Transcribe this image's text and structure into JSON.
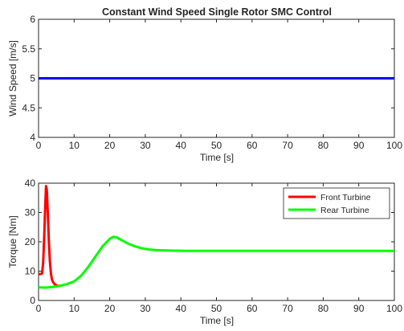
{
  "chart_data": [
    {
      "type": "line",
      "title": "Constant Wind Speed Single Rotor SMC Control",
      "xlabel": "Time [s]",
      "ylabel": "Wind Speed [m/s]",
      "xlim": [
        0,
        100
      ],
      "ylim": [
        4,
        6
      ],
      "xticks": [
        0,
        10,
        20,
        30,
        40,
        50,
        60,
        70,
        80,
        90,
        100
      ],
      "yticks": [
        4,
        4.5,
        5,
        5.5,
        6
      ],
      "ytick_labels": [
        "4",
        "4.5",
        "5",
        "5.5",
        "6"
      ],
      "grid": false,
      "series": [
        {
          "color": "#0000ff",
          "x": [
            0,
            100
          ],
          "y": [
            5,
            5
          ]
        }
      ]
    },
    {
      "type": "line",
      "title": "",
      "xlabel": "Time [s]",
      "ylabel": "Torque [Nm]",
      "xlim": [
        0,
        100
      ],
      "ylim": [
        0,
        40
      ],
      "xticks": [
        0,
        10,
        20,
        30,
        40,
        50,
        60,
        70,
        80,
        90,
        100
      ],
      "yticks": [
        0,
        10,
        20,
        30,
        40
      ],
      "ytick_labels": [
        "0",
        "10",
        "20",
        "30",
        "40"
      ],
      "grid": false,
      "legend_position": "top-right",
      "series": [
        {
          "name": "Front Turbine",
          "color": "#ff0000",
          "x": [
            0,
            0.5,
            1.0,
            1.3,
            1.6,
            1.9,
            2.1,
            2.3,
            2.6,
            2.9,
            3.2,
            3.5,
            3.8,
            4.2,
            4.6,
            5.0,
            5.5,
            6.0
          ],
          "y": [
            9,
            9,
            9.2,
            13,
            22,
            33,
            39,
            38,
            30,
            20,
            13,
            9,
            7,
            6,
            5.5,
            5.2,
            5.0,
            5.0
          ]
        },
        {
          "name": "Rear Turbine",
          "color": "#00ff00",
          "x": [
            0,
            2,
            4,
            6,
            8,
            10,
            12,
            14,
            16,
            18,
            20,
            21,
            22,
            23,
            25,
            27,
            29,
            31,
            33,
            35,
            38,
            42,
            50,
            60,
            70,
            80,
            90,
            100
          ],
          "y": [
            4.5,
            4.4,
            4.6,
            5.0,
            5.6,
            6.5,
            8.5,
            11.5,
            15,
            18.5,
            21,
            21.7,
            21.5,
            20.8,
            19.5,
            18.5,
            17.8,
            17.4,
            17.2,
            17.1,
            17.0,
            16.9,
            16.9,
            16.9,
            16.9,
            16.9,
            16.9,
            16.9
          ]
        }
      ]
    }
  ]
}
